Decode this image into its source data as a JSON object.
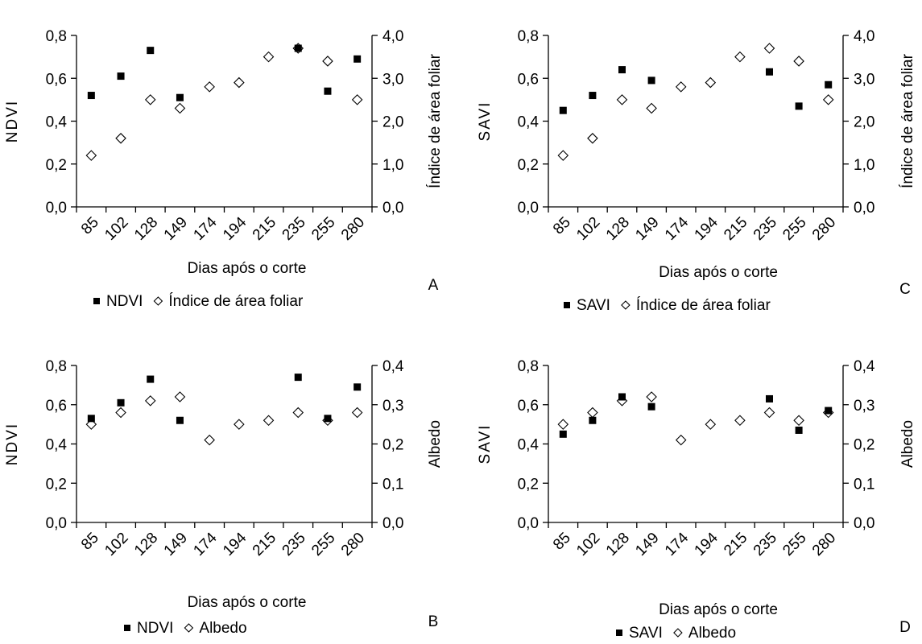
{
  "chart_data": [
    {
      "type": "scatter",
      "letter": "A",
      "categories": [
        "85",
        "102",
        "128",
        "149",
        "174",
        "194",
        "215",
        "235",
        "255",
        "280"
      ],
      "xlabel": "Dias após o corte",
      "ylabel": "NDVI",
      "y2label": "Índice de área foliar",
      "ylim": [
        0,
        0.8
      ],
      "y2lim": [
        0,
        4.0
      ],
      "yticks": [
        "0,0",
        "0,2",
        "0,4",
        "0,6",
        "0,8"
      ],
      "y2ticks": [
        "0,0",
        "1,0",
        "2,0",
        "3,0",
        "4,0"
      ],
      "series": [
        {
          "name": "NDVI",
          "axis": "left",
          "marker": "square",
          "values": [
            0.52,
            0.61,
            0.73,
            0.51,
            null,
            null,
            null,
            0.74,
            0.54,
            0.69
          ]
        },
        {
          "name": "Índice de área foliar",
          "axis": "right",
          "marker": "diamond",
          "values": [
            1.2,
            1.6,
            2.5,
            2.3,
            2.8,
            2.9,
            3.5,
            3.7,
            3.4,
            2.5
          ]
        }
      ]
    },
    {
      "type": "scatter",
      "letter": "C",
      "categories": [
        "85",
        "102",
        "128",
        "149",
        "174",
        "194",
        "215",
        "235",
        "255",
        "280"
      ],
      "xlabel": "Dias após o corte",
      "ylabel": "SAVI",
      "y2label": "Índice de área foliar",
      "ylim": [
        0,
        0.8
      ],
      "y2lim": [
        0,
        4.0
      ],
      "yticks": [
        "0,0",
        "0,2",
        "0,4",
        "0,6",
        "0,8"
      ],
      "y2ticks": [
        "0,0",
        "1,0",
        "2,0",
        "3,0",
        "4,0"
      ],
      "series": [
        {
          "name": "SAVI",
          "axis": "left",
          "marker": "square",
          "values": [
            0.45,
            0.52,
            0.64,
            0.59,
            null,
            null,
            null,
            0.63,
            0.47,
            0.57
          ]
        },
        {
          "name": "Índice de área foliar",
          "axis": "right",
          "marker": "diamond",
          "values": [
            1.2,
            1.6,
            2.5,
            2.3,
            2.8,
            2.9,
            3.5,
            3.7,
            3.4,
            2.5
          ]
        }
      ]
    },
    {
      "type": "scatter",
      "letter": "B",
      "categories": [
        "85",
        "102",
        "128",
        "149",
        "174",
        "194",
        "215",
        "235",
        "255",
        "280"
      ],
      "xlabel": "Dias após o corte",
      "ylabel": "NDVI",
      "y2label": "Albedo",
      "ylim": [
        0,
        0.8
      ],
      "y2lim": [
        0,
        0.4
      ],
      "yticks": [
        "0,0",
        "0,2",
        "0,4",
        "0,6",
        "0,8"
      ],
      "y2ticks": [
        "0,0",
        "0,1",
        "0,2",
        "0,3",
        "0,4"
      ],
      "series": [
        {
          "name": "NDVI",
          "axis": "left",
          "marker": "square",
          "values": [
            0.53,
            0.61,
            0.73,
            0.52,
            null,
            null,
            null,
            0.74,
            0.53,
            0.69
          ]
        },
        {
          "name": "Albedo",
          "axis": "right",
          "marker": "diamond",
          "values": [
            0.25,
            0.28,
            0.31,
            0.32,
            0.21,
            0.25,
            0.26,
            0.28,
            0.26,
            0.28
          ]
        }
      ]
    },
    {
      "type": "scatter",
      "letter": "D",
      "categories": [
        "85",
        "102",
        "128",
        "149",
        "174",
        "194",
        "215",
        "235",
        "255",
        "280"
      ],
      "xlabel": "Dias após o corte",
      "ylabel": "SAVI",
      "y2label": "Albedo",
      "ylim": [
        0,
        0.8
      ],
      "y2lim": [
        0,
        0.4
      ],
      "yticks": [
        "0,0",
        "0,2",
        "0,4",
        "0,6",
        "0,8"
      ],
      "y2ticks": [
        "0,0",
        "0,1",
        "0,2",
        "0,3",
        "0,4"
      ],
      "series": [
        {
          "name": "SAVI",
          "axis": "left",
          "marker": "square",
          "values": [
            0.45,
            0.52,
            0.64,
            0.59,
            null,
            null,
            null,
            0.63,
            0.47,
            0.57
          ]
        },
        {
          "name": "Albedo",
          "axis": "right",
          "marker": "diamond",
          "values": [
            0.25,
            0.28,
            0.31,
            0.32,
            0.21,
            0.25,
            0.26,
            0.28,
            0.26,
            0.28
          ]
        }
      ]
    }
  ]
}
